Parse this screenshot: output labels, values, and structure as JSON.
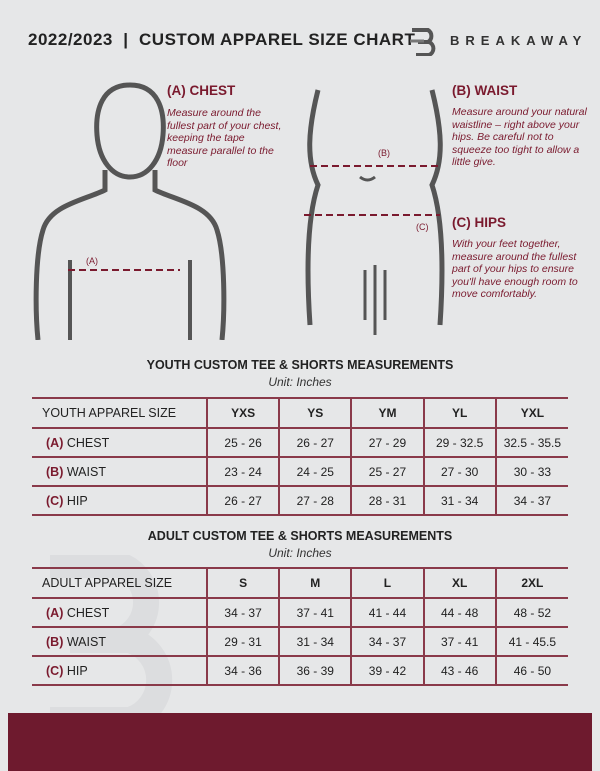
{
  "header": {
    "title": "2022/2023  |  CUSTOM APPAREL SIZE CHART",
    "brand": "BREAKAWAY"
  },
  "colors": {
    "accent": "#7a1a2e",
    "background": "#e6e7e8"
  },
  "measures": {
    "chest": {
      "heading": "(A) CHEST",
      "text": "Measure around the fullest part of your chest, keeping the tape measure parallel to the floor",
      "marker": "(A)"
    },
    "waist": {
      "heading": "(B) WAIST",
      "text": "Measure around your natural waistline – right above your hips. Be careful not to squeeze too tight to allow a little give.",
      "marker": "(B)"
    },
    "hips": {
      "heading": "(C) HIPS",
      "text": "With your feet together, measure around the fullest part of your hips to ensure you'll have enough room to move comfortably.",
      "marker": "(C)"
    }
  },
  "youth": {
    "title": "YOUTH CUSTOM TEE & SHORTS MEASUREMENTS",
    "unit": "Unit: Inches",
    "size_label": "YOUTH APPAREL SIZE",
    "sizes": [
      "YXS",
      "YS",
      "YM",
      "YL",
      "YXL"
    ],
    "rows": [
      {
        "tag": "(A)",
        "name": "CHEST",
        "values": [
          "25 - 26",
          "26 - 27",
          "27 - 29",
          "29 - 32.5",
          "32.5 - 35.5"
        ]
      },
      {
        "tag": "(B)",
        "name": "WAIST",
        "values": [
          "23 - 24",
          "24 - 25",
          "25 - 27",
          "27 - 30",
          "30 - 33"
        ]
      },
      {
        "tag": "(C)",
        "name": "HIP",
        "values": [
          "26 - 27",
          "27 - 28",
          "28 - 31",
          "31 - 34",
          "34 - 37"
        ]
      }
    ]
  },
  "adult": {
    "title": "ADULT CUSTOM TEE & SHORTS MEASUREMENTS",
    "unit": "Unit: Inches",
    "size_label": "ADULT APPAREL SIZE",
    "sizes": [
      "S",
      "M",
      "L",
      "XL",
      "2XL"
    ],
    "rows": [
      {
        "tag": "(A)",
        "name": "CHEST",
        "values": [
          "34 - 37",
          "37 - 41",
          "41 - 44",
          "44 - 48",
          "48 - 52"
        ]
      },
      {
        "tag": "(B)",
        "name": "WAIST",
        "values": [
          "29 - 31",
          "31 - 34",
          "34 - 37",
          "37 - 41",
          "41 - 45.5"
        ]
      },
      {
        "tag": "(C)",
        "name": "HIP",
        "values": [
          "34 - 36",
          "36 - 39",
          "39 - 42",
          "43 - 46",
          "46 - 50"
        ]
      }
    ]
  }
}
